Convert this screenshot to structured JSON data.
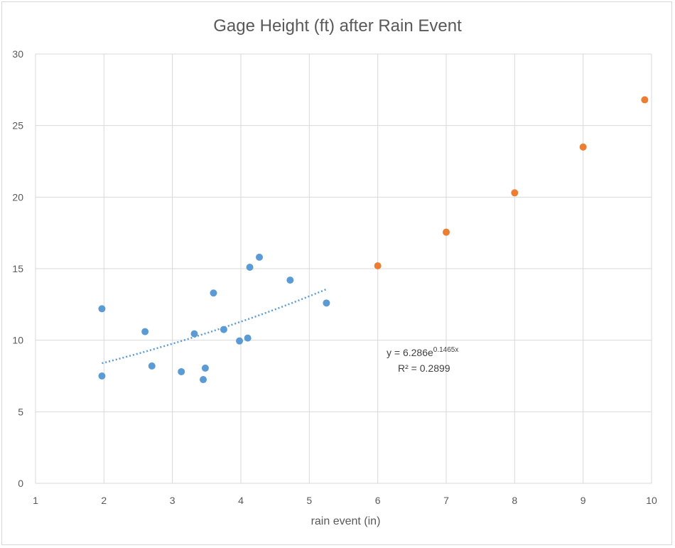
{
  "chart_data": {
    "type": "scatter",
    "title": "Gage Height (ft) after Rain Event",
    "xlabel": "rain event (in)",
    "ylabel": "",
    "xlim": [
      1,
      10
    ],
    "ylim": [
      0,
      30
    ],
    "x_ticks": [
      1,
      2,
      3,
      4,
      5,
      6,
      7,
      8,
      9,
      10
    ],
    "y_ticks": [
      0,
      5,
      10,
      15,
      20,
      25,
      30
    ],
    "grid": true,
    "legend": "none",
    "series": [
      {
        "color": "#5b9bd5",
        "points": [
          {
            "x": 1.97,
            "y": 12.2
          },
          {
            "x": 1.97,
            "y": 7.5
          },
          {
            "x": 2.6,
            "y": 10.6
          },
          {
            "x": 2.7,
            "y": 8.2
          },
          {
            "x": 3.13,
            "y": 7.8
          },
          {
            "x": 3.32,
            "y": 10.45
          },
          {
            "x": 3.45,
            "y": 7.25
          },
          {
            "x": 3.48,
            "y": 8.05
          },
          {
            "x": 3.6,
            "y": 13.3
          },
          {
            "x": 3.75,
            "y": 10.75
          },
          {
            "x": 3.98,
            "y": 9.95
          },
          {
            "x": 4.1,
            "y": 10.15
          },
          {
            "x": 4.13,
            "y": 15.1
          },
          {
            "x": 4.27,
            "y": 15.8
          },
          {
            "x": 4.72,
            "y": 14.2
          },
          {
            "x": 5.25,
            "y": 12.6
          }
        ],
        "trendline": {
          "type": "exponential",
          "a": 6.286,
          "b": 0.1465,
          "x_range": [
            1.97,
            5.25
          ],
          "style": "dotted",
          "equation_prefix": "y = 6.286e",
          "equation_exponent": "0.1465x",
          "r_squared_label": "R² = 0.2899"
        }
      },
      {
        "color": "#ed7d31",
        "points": [
          {
            "x": 6,
            "y": 15.2
          },
          {
            "x": 7,
            "y": 17.55
          },
          {
            "x": 8,
            "y": 20.3
          },
          {
            "x": 9,
            "y": 23.5
          },
          {
            "x": 9.9,
            "y": 26.8
          }
        ]
      }
    ]
  }
}
